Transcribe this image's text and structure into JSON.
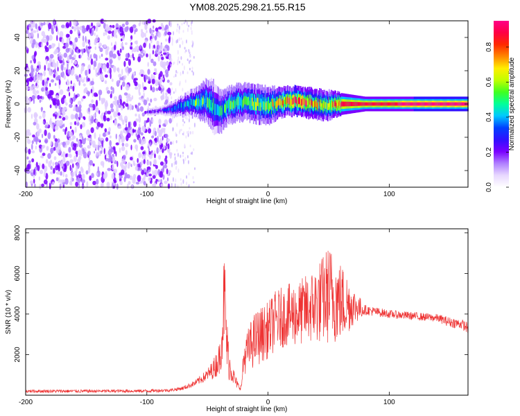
{
  "title": "YM08.2025.298.21.55.R15",
  "colors": {
    "snr_line": "#ee3333",
    "colormap": [
      "#ffffff",
      "#e8d8ff",
      "#b080ff",
      "#7a00ff",
      "#3010ff",
      "#0040ff",
      "#00c8ff",
      "#00ff9a",
      "#40ff20",
      "#c0ff00",
      "#ffee00",
      "#ff8800",
      "#ff2a00",
      "#ff0044",
      "#ff0088"
    ]
  },
  "chart_data": [
    {
      "type": "heatmap",
      "xlabel": "Height of straight line (km)",
      "ylabel": "Frequency (Hz)",
      "xlim": [
        -200,
        165
      ],
      "ylim": [
        -50,
        50
      ],
      "x_ticks": [
        -200,
        -100,
        0,
        100
      ],
      "y_ticks": [
        -40,
        -20,
        0,
        20,
        40
      ],
      "colorbar": {
        "label": "Normalized spectral amplitude",
        "range": [
          0,
          0.95
        ],
        "ticks": [
          0.0,
          0.2,
          0.4,
          0.6,
          0.8
        ]
      },
      "noise_region_km": [
        -200,
        -80
      ],
      "sparse_noise_region_km": [
        -80,
        -60
      ],
      "signal_ridge": {
        "x": [
          -100,
          -90,
          -80,
          -70,
          -60,
          -50,
          -45,
          -40,
          -35,
          -30,
          -20,
          -10,
          0,
          10,
          20,
          30,
          40,
          50,
          60,
          80,
          100,
          120,
          140,
          165
        ],
        "freq": [
          -5,
          -4,
          -3,
          -1,
          1,
          2,
          -2,
          -4,
          -2,
          0,
          1,
          0,
          -1,
          1,
          2,
          1,
          0,
          -1,
          0,
          0,
          0,
          0,
          0,
          0
        ],
        "width": [
          1,
          1,
          2,
          3,
          4,
          6,
          7,
          6,
          5,
          5,
          5,
          5,
          5,
          4,
          4,
          4,
          4,
          4,
          3,
          2,
          2,
          2,
          2,
          2
        ],
        "peak_amplitude": [
          0.2,
          0.25,
          0.35,
          0.45,
          0.5,
          0.5,
          0.45,
          0.45,
          0.5,
          0.55,
          0.55,
          0.6,
          0.6,
          0.75,
          0.85,
          0.8,
          0.7,
          0.7,
          0.9,
          0.85,
          0.9,
          0.95,
          0.95,
          0.95
        ]
      }
    },
    {
      "type": "line",
      "xlabel": "Height of straight line (km)",
      "ylabel": "SNR (10 * v/v)",
      "xlim": [
        -200,
        165
      ],
      "ylim": [
        0,
        8200
      ],
      "x_ticks": [
        -200,
        -100,
        0,
        100
      ],
      "y_ticks": [
        2000,
        4000,
        6000,
        8000
      ],
      "series": [
        {
          "x": [
            -200,
            -150,
            -100,
            -80,
            -70,
            -60,
            -50,
            -45,
            -40,
            -38,
            -36,
            -34,
            -32,
            -30,
            -27,
            -24,
            -22,
            -20,
            -15,
            -10,
            -5,
            0,
            5,
            10,
            15,
            20,
            25,
            30,
            35,
            40,
            45,
            50,
            55,
            60,
            65,
            70,
            80,
            100,
            120,
            140,
            150,
            160,
            165
          ],
          "values": [
            200,
            200,
            210,
            250,
            350,
            600,
            1000,
            1300,
            1800,
            3000,
            5000,
            2500,
            1500,
            1200,
            700,
            400,
            400,
            1800,
            2400,
            2800,
            3000,
            3200,
            3600,
            3800,
            3900,
            4000,
            4000,
            4200,
            4300,
            4500,
            4700,
            5000,
            4800,
            4600,
            4500,
            4400,
            4200,
            4000,
            3900,
            3800,
            3600,
            3500,
            3300
          ],
          "spread": [
            80,
            80,
            80,
            80,
            100,
            150,
            300,
            500,
            800,
            1500,
            2500,
            1500,
            800,
            600,
            300,
            150,
            150,
            800,
            1200,
            1400,
            1400,
            1400,
            1500,
            1500,
            1500,
            1600,
            1600,
            1700,
            1800,
            2000,
            2200,
            2500,
            2300,
            2000,
            1600,
            1000,
            250,
            200,
            200,
            200,
            250,
            250,
            300
          ]
        }
      ]
    }
  ]
}
